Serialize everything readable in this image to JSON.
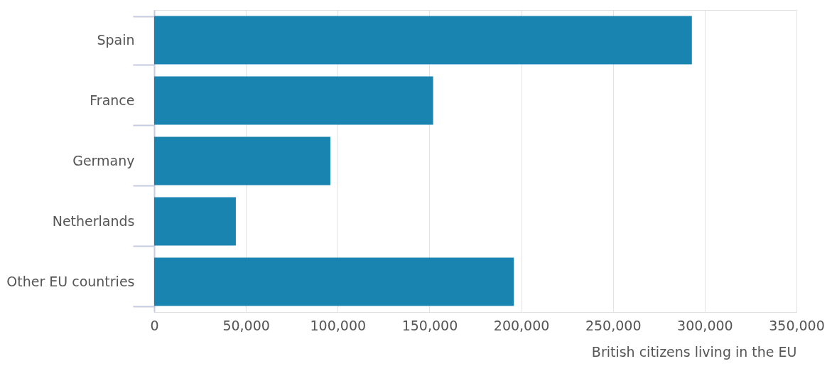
{
  "chart_data": {
    "type": "bar",
    "orientation": "horizontal",
    "xlabel": "British citizens living in the EU",
    "categories": [
      "Spain",
      "France",
      "Germany",
      "Netherlands",
      "Other EU countries"
    ],
    "values": [
      293000,
      152000,
      96000,
      44500,
      196000
    ],
    "color": "#1a84b0",
    "xlim": [
      0,
      350000
    ],
    "xticks": [
      {
        "value": 0,
        "label": "0"
      },
      {
        "value": 50000,
        "label": "50,000"
      },
      {
        "value": 100000,
        "label": "100,000"
      },
      {
        "value": 150000,
        "label": "150,000"
      },
      {
        "value": 200000,
        "label": "200,000"
      },
      {
        "value": 250000,
        "label": "250,000"
      },
      {
        "value": 300000,
        "label": "300,000"
      },
      {
        "value": 350000,
        "label": "350,000"
      }
    ],
    "grid": "x"
  }
}
